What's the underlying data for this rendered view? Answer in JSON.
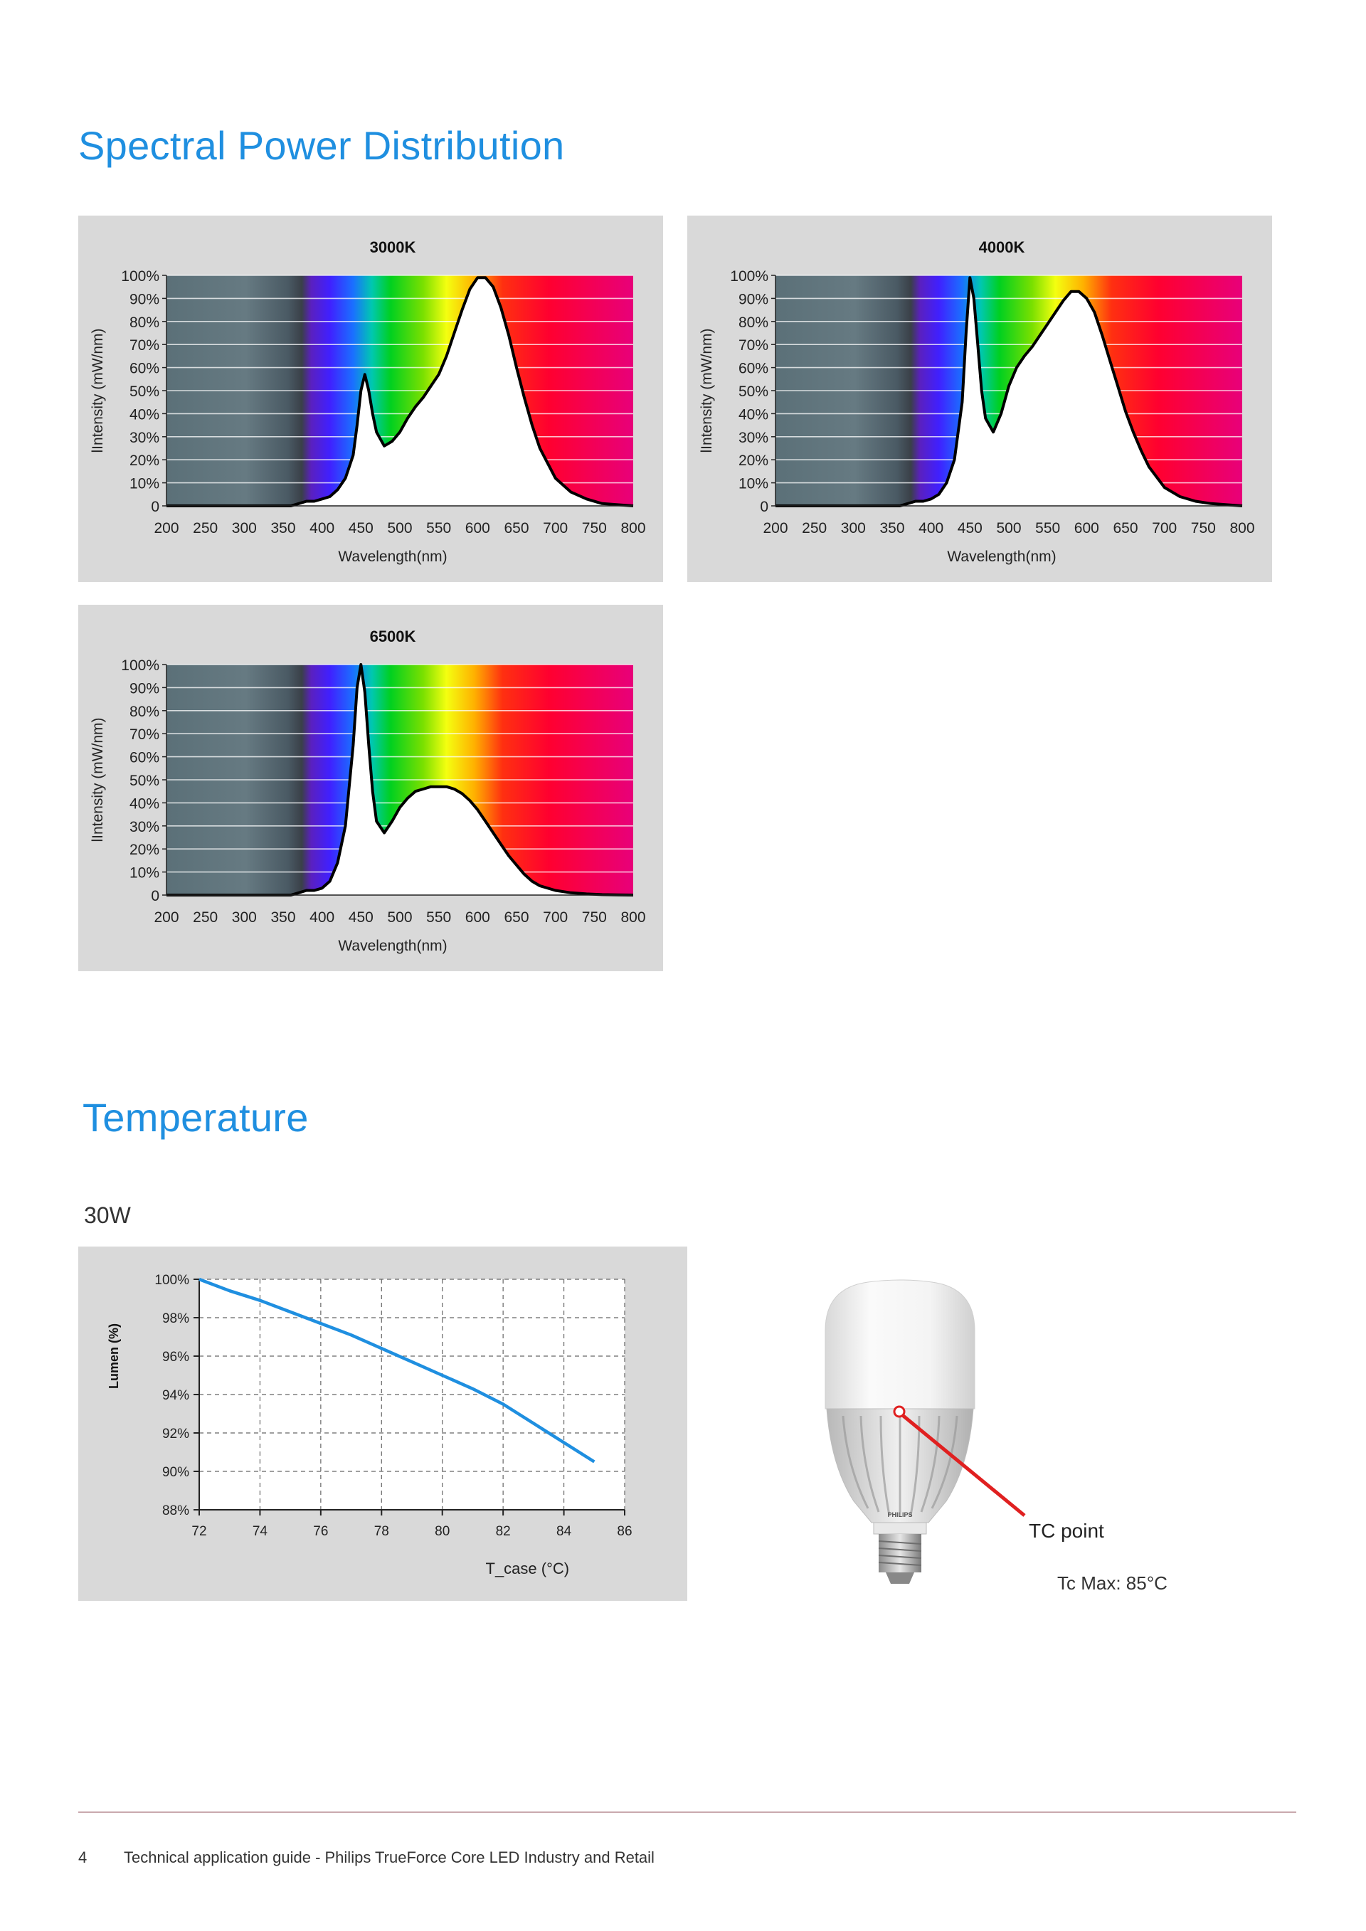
{
  "section1": {
    "title": "Spectral Power Distribution"
  },
  "spd_charts": [
    {
      "title": "3000K",
      "ylabel": "lIntensity (mW/nm)",
      "xlabel": "Wavelength(nm)",
      "y_ticks": [
        "0",
        "10%",
        "20%",
        "30%",
        "40%",
        "50%",
        "60%",
        "70%",
        "80%",
        "90%",
        "100%"
      ],
      "x_ticks": [
        "200",
        "250",
        "300",
        "350",
        "400",
        "450",
        "500",
        "550",
        "600",
        "650",
        "700",
        "750",
        "800"
      ]
    },
    {
      "title": "4000K",
      "ylabel": "lIntensity (mW/nm)",
      "xlabel": "Wavelength(nm)",
      "y_ticks": [
        "0",
        "10%",
        "20%",
        "30%",
        "40%",
        "50%",
        "60%",
        "70%",
        "80%",
        "90%",
        "100%"
      ],
      "x_ticks": [
        "200",
        "250",
        "300",
        "350",
        "400",
        "450",
        "500",
        "550",
        "600",
        "650",
        "700",
        "750",
        "800"
      ]
    },
    {
      "title": "6500K",
      "ylabel": "lIntensity (mW/nm)",
      "xlabel": "Wavelength(nm)",
      "y_ticks": [
        "0",
        "10%",
        "20%",
        "30%",
        "40%",
        "50%",
        "60%",
        "70%",
        "80%",
        "90%",
        "100%"
      ],
      "x_ticks": [
        "200",
        "250",
        "300",
        "350",
        "400",
        "450",
        "500",
        "550",
        "600",
        "650",
        "700",
        "750",
        "800"
      ]
    }
  ],
  "chart_data": [
    {
      "type": "area",
      "title": "3000K",
      "xlabel": "Wavelength(nm)",
      "ylabel": "lIntensity (mW/nm)",
      "xlim": [
        200,
        800
      ],
      "ylim": [
        0,
        100
      ],
      "x": [
        200,
        360,
        370,
        380,
        390,
        400,
        410,
        420,
        430,
        440,
        445,
        450,
        455,
        460,
        465,
        470,
        480,
        490,
        500,
        510,
        520,
        530,
        540,
        550,
        560,
        570,
        580,
        590,
        600,
        610,
        620,
        630,
        640,
        650,
        660,
        670,
        680,
        700,
        720,
        740,
        760,
        780,
        800
      ],
      "y": [
        0,
        0,
        1,
        2,
        2,
        3,
        4,
        7,
        12,
        22,
        35,
        50,
        57,
        50,
        40,
        32,
        26,
        28,
        32,
        38,
        43,
        47,
        52,
        57,
        65,
        75,
        85,
        94,
        99,
        99,
        95,
        86,
        74,
        60,
        47,
        35,
        25,
        12,
        6,
        3,
        1,
        0.5,
        0
      ]
    },
    {
      "type": "area",
      "title": "4000K",
      "xlabel": "Wavelength(nm)",
      "ylabel": "lIntensity (mW/nm)",
      "xlim": [
        200,
        800
      ],
      "ylim": [
        0,
        100
      ],
      "x": [
        200,
        360,
        370,
        380,
        390,
        400,
        410,
        420,
        430,
        440,
        445,
        450,
        455,
        460,
        465,
        470,
        480,
        490,
        500,
        510,
        520,
        530,
        540,
        550,
        560,
        570,
        580,
        590,
        600,
        610,
        620,
        630,
        640,
        650,
        660,
        670,
        680,
        700,
        720,
        740,
        760,
        780,
        800
      ],
      "y": [
        0,
        0,
        1,
        2,
        2,
        3,
        5,
        10,
        20,
        45,
        75,
        99,
        90,
        70,
        50,
        38,
        32,
        40,
        52,
        60,
        65,
        69,
        74,
        79,
        84,
        89,
        93,
        93,
        90,
        84,
        74,
        63,
        52,
        41,
        32,
        24,
        17,
        8,
        4,
        2,
        1,
        0.5,
        0
      ]
    },
    {
      "type": "area",
      "title": "6500K",
      "xlabel": "Wavelength(nm)",
      "ylabel": "lIntensity (mW/nm)",
      "xlim": [
        200,
        800
      ],
      "ylim": [
        0,
        100
      ],
      "x": [
        200,
        360,
        370,
        380,
        390,
        400,
        410,
        420,
        430,
        440,
        445,
        450,
        455,
        460,
        465,
        470,
        480,
        490,
        500,
        510,
        520,
        530,
        540,
        550,
        560,
        570,
        580,
        590,
        600,
        610,
        620,
        630,
        640,
        650,
        660,
        670,
        680,
        700,
        720,
        740,
        760,
        780,
        800
      ],
      "y": [
        0,
        0,
        1,
        2,
        2,
        3,
        6,
        14,
        30,
        65,
        90,
        100,
        88,
        65,
        45,
        32,
        27,
        32,
        38,
        42,
        45,
        46,
        47,
        47,
        47,
        46,
        44,
        41,
        37,
        32,
        27,
        22,
        17,
        13,
        9,
        6,
        4,
        2,
        1,
        0.5,
        0.2,
        0.1,
        0
      ]
    },
    {
      "type": "line",
      "title": "",
      "xlabel": "T_case (°C)",
      "ylabel": "Lumen (%)",
      "xlim": [
        72,
        86
      ],
      "ylim": [
        88,
        100
      ],
      "x_ticks": [
        "72",
        "74",
        "76",
        "78",
        "80",
        "82",
        "84",
        "86"
      ],
      "y_ticks": [
        "88%",
        "90%",
        "92%",
        "94%",
        "96%",
        "98%",
        "100%"
      ],
      "grid": true,
      "series": [
        {
          "x": [
            72,
            73,
            74,
            75,
            76,
            77,
            78,
            79,
            80,
            81,
            82,
            83,
            84,
            85
          ],
          "y": [
            100,
            99.4,
            98.9,
            98.3,
            97.7,
            97.1,
            96.4,
            95.7,
            95.0,
            94.3,
            93.5,
            92.5,
            91.5,
            90.5
          ]
        }
      ]
    }
  ],
  "section2": {
    "title": "Temperature"
  },
  "temp_chart": {
    "caption": "30W",
    "ylabel": "Lumen (%)",
    "xlabel": "T_case (°C)",
    "x_ticks": [
      "72",
      "74",
      "76",
      "78",
      "80",
      "82",
      "84",
      "86"
    ],
    "y_ticks": [
      "88%",
      "90%",
      "92%",
      "94%",
      "96%",
      "98%",
      "100%"
    ]
  },
  "lamp": {
    "brand": "PHILIPS",
    "tc_point_label": "TC point",
    "tc_max": "Tc Max: 85°C"
  },
  "footer": {
    "page_number": "4",
    "text": "Technical application guide - Philips TrueForce Core LED Industry and Retail"
  },
  "colors": {
    "heading": "#1f8fe0",
    "curve": "#1f8fe0",
    "panel": "#d9d9d9",
    "tc_marker": "#e02020"
  }
}
